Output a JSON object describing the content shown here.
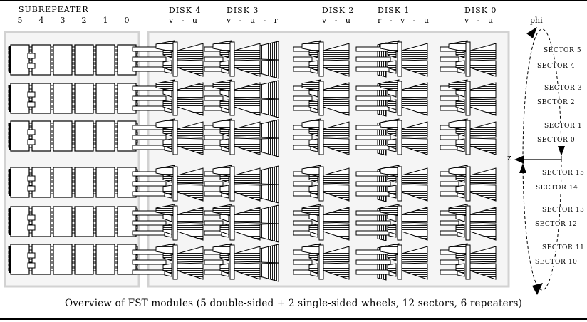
{
  "subrepeater": {
    "label": "SUBREPEATER",
    "channels": [
      "5",
      "4",
      "3",
      "2",
      "1",
      "0"
    ],
    "row_count": 6,
    "boards_per_row": 6
  },
  "disks": [
    {
      "name": "DISK 4",
      "layers_label": "v - u",
      "layers": [
        "v",
        "u"
      ]
    },
    {
      "name": "DISK 3",
      "layers_label": "v - u - r",
      "layers": [
        "v",
        "u",
        "r"
      ]
    },
    {
      "name": "DISK 2",
      "layers_label": "v - u",
      "layers": [
        "v",
        "u"
      ]
    },
    {
      "name": "DISK 1",
      "layers_label": "r - v - u",
      "layers": [
        "r",
        "v",
        "u"
      ]
    },
    {
      "name": "DISK 0",
      "layers_label": "v - u",
      "layers": [
        "v",
        "u"
      ]
    }
  ],
  "axes": {
    "phi": "phi",
    "z": "z"
  },
  "sectors": {
    "top": [
      "SECTOR 5",
      "SECTOR 4",
      "SECTOR 3",
      "SECTOR 2",
      "SECTOR 1",
      "SECTOR 0"
    ],
    "bottom": [
      "SECTOR 15",
      "SECTOR 14",
      "SECTOR 13",
      "SECTOR 12",
      "SECTOR 11",
      "SECTOR 10"
    ]
  },
  "caption": "Overview of FST modules (5 double-sided + 2 single-sided wheels, 12 sectors, 6 repeaters)",
  "colors": {
    "ink": "#000000",
    "panel_bg": "#f5f5f5",
    "panel_border": "#d2d2d2",
    "module_fill": "#ffffff"
  }
}
